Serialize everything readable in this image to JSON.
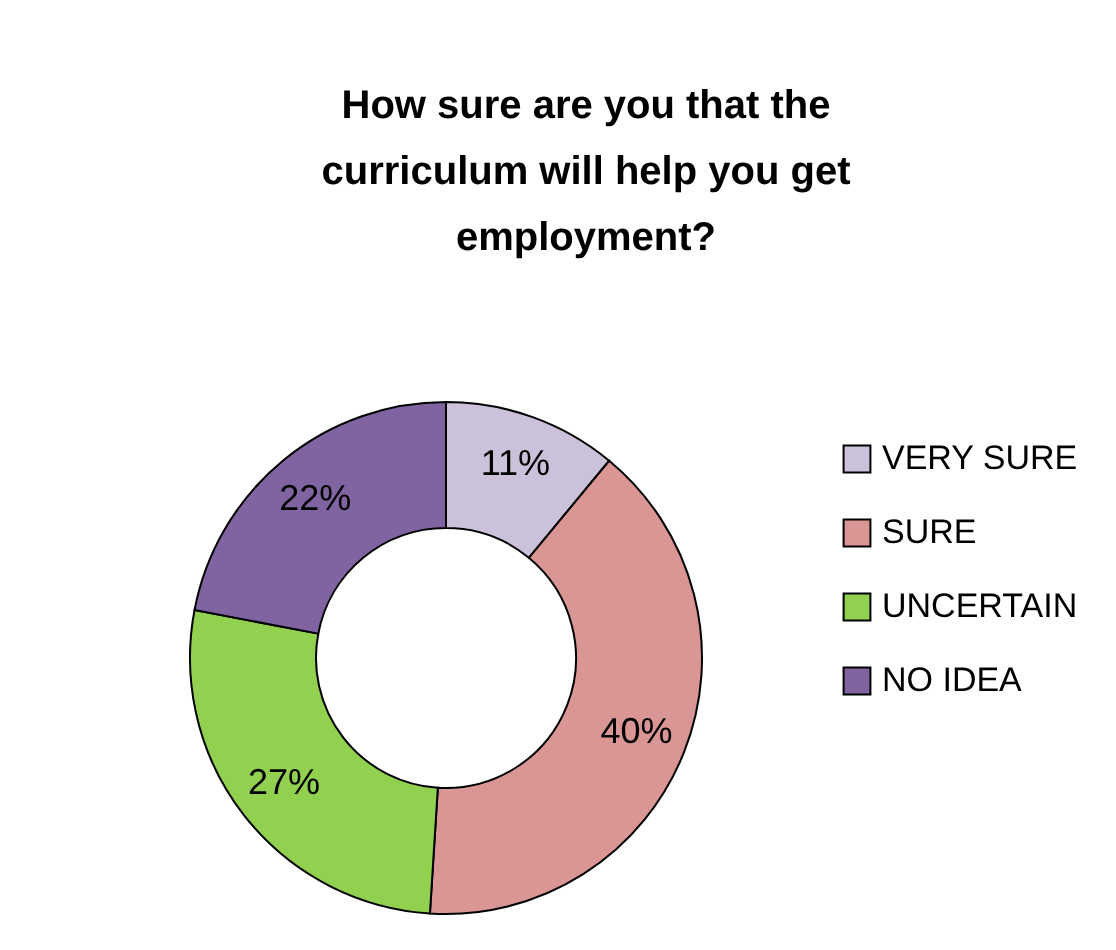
{
  "chart_data": {
    "type": "donut",
    "title": "How sure are you that the curriculum will help you get employment?",
    "categories": [
      "VERY SURE",
      "SURE",
      "UNCERTAIN",
      "NO IDEA"
    ],
    "values": [
      11,
      40,
      27,
      22
    ],
    "value_labels": [
      "11%",
      "40%",
      "27%",
      "22%"
    ],
    "colors": [
      "#ccc1da",
      "#d99694",
      "#92d050",
      "#8064a2"
    ],
    "legend": "right"
  }
}
